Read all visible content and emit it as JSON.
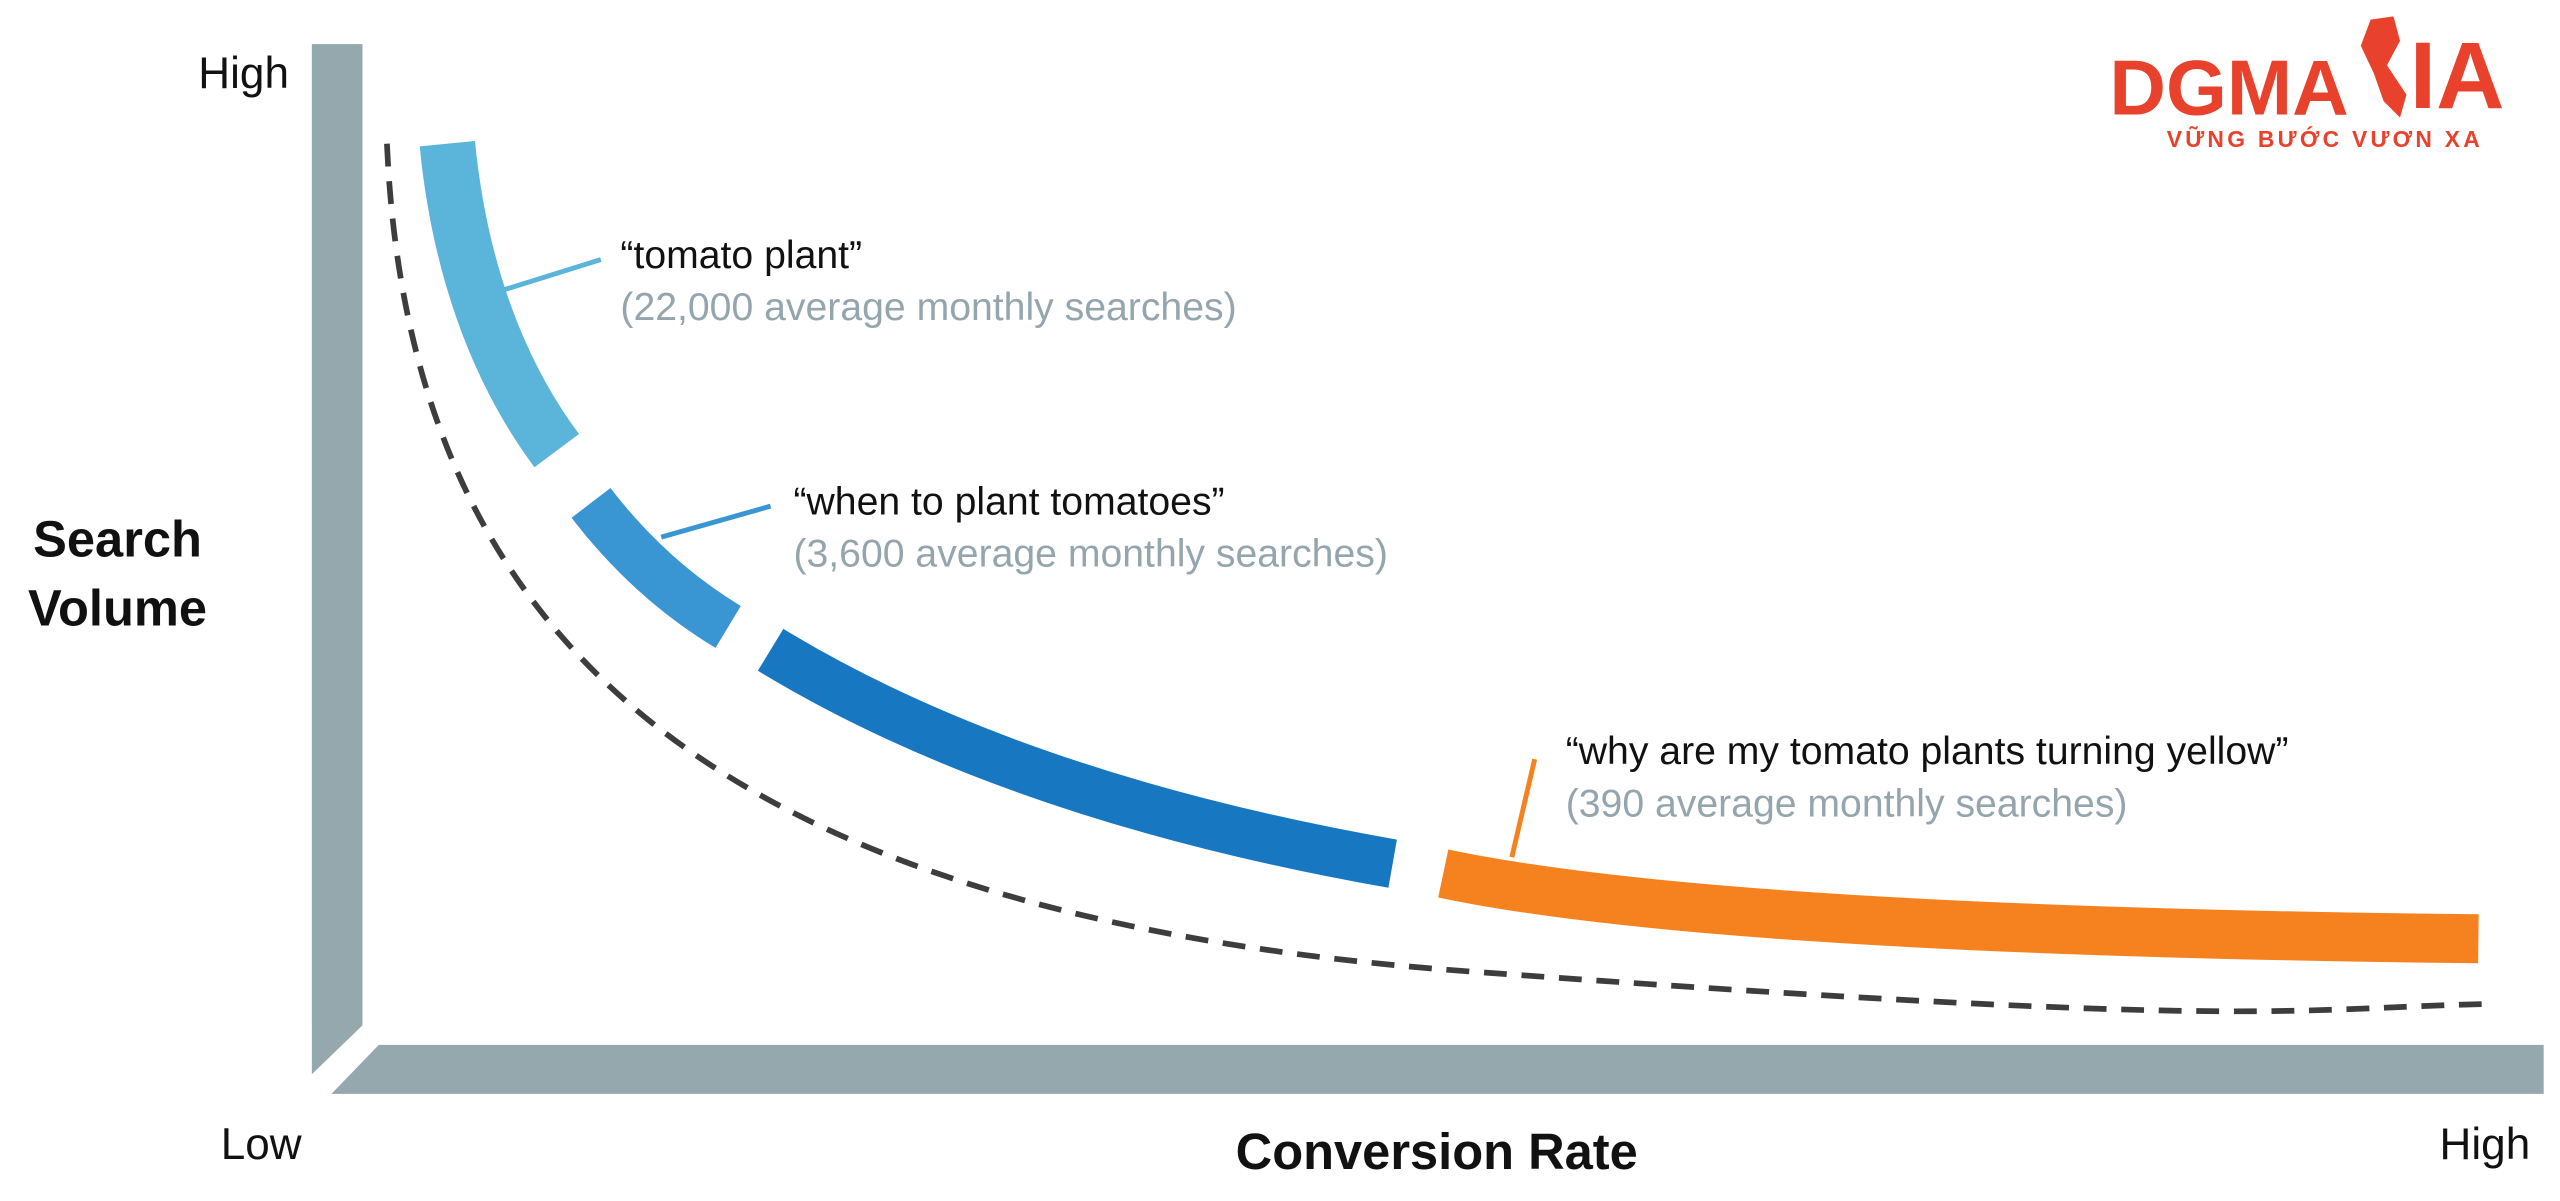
{
  "logo": {
    "name_left": "DGMA",
    "name_right": "IA",
    "tagline": "VỮNG BƯỚC VƯƠN XA"
  },
  "y_axis": {
    "high": "High",
    "title_line1": "Search",
    "title_line2": "Volume"
  },
  "x_axis": {
    "low": "Low",
    "title": "Conversion Rate",
    "high": "High"
  },
  "callouts": [
    {
      "keyword": "“tomato plant”",
      "searches": "(22,000 average monthly searches)"
    },
    {
      "keyword": "“when to plant tomatoes”",
      "searches": "(3,600 average monthly searches)"
    },
    {
      "keyword": "“why are my tomato plants turning yellow”",
      "searches": "(390 average monthly searches)"
    }
  ]
}
